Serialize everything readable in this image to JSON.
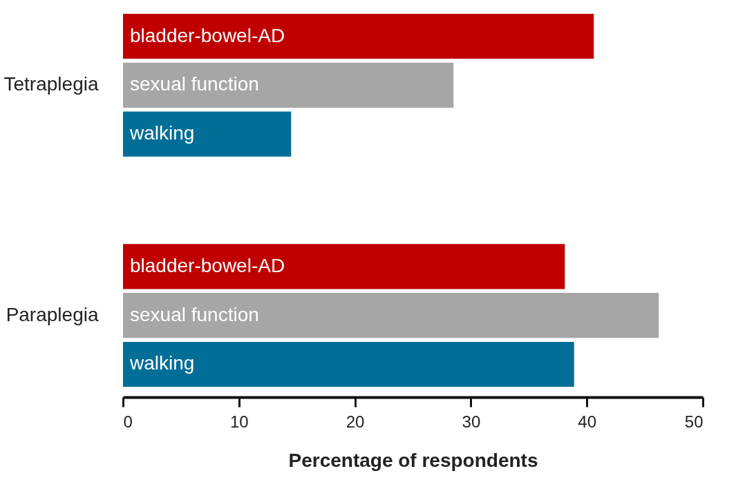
{
  "chart_data": {
    "type": "bar",
    "orientation": "horizontal",
    "xlabel": "Percentage of respondents",
    "categories": [
      "Tetraplegia",
      "Paraplegia"
    ],
    "series": [
      {
        "name": "bladder-bowel-AD",
        "color": "#c00000",
        "values": [
          40.6,
          38.1
        ]
      },
      {
        "name": "sexual function",
        "color": "#a6a6a6",
        "values": [
          28.5,
          46.2
        ]
      },
      {
        "name": "walking",
        "color": "#006e96",
        "values": [
          14.5,
          38.9
        ]
      }
    ],
    "xlim": [
      0,
      50
    ],
    "xticks": [
      0,
      10,
      20,
      30,
      40,
      50
    ],
    "grid": false,
    "legend": false
  }
}
